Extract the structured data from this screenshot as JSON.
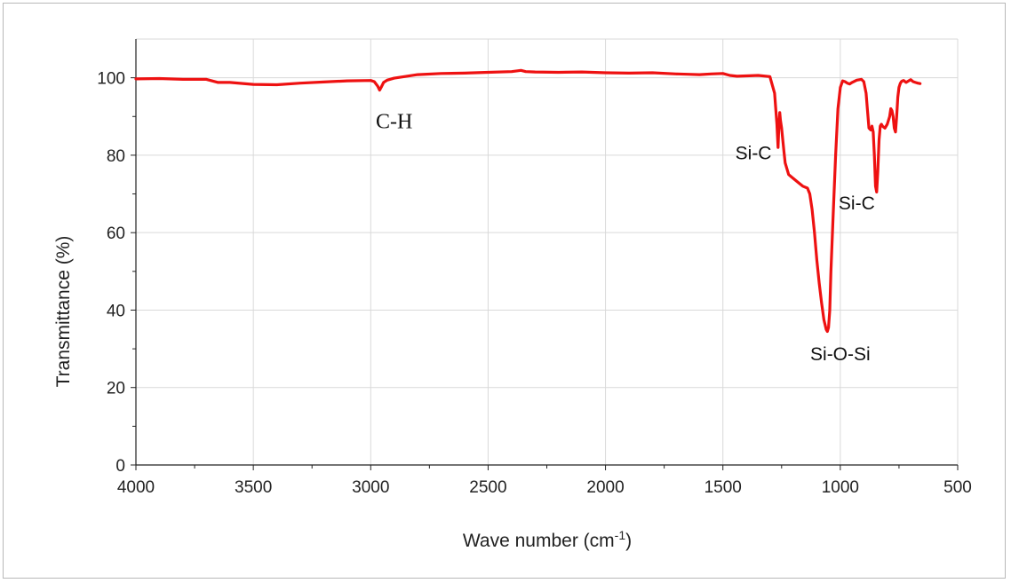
{
  "chart_data": {
    "type": "line",
    "xlabel": "Wave number (cm",
    "xlabel_superscript": "-1",
    "xlabel_suffix": ")",
    "ylabel": "Transmittance (%)",
    "xlim": [
      4000,
      500
    ],
    "ylim": [
      0,
      110
    ],
    "x_reversed": true,
    "grid": true,
    "legend": "none",
    "x_ticks": [
      4000,
      3500,
      3000,
      2500,
      2000,
      1500,
      1000,
      500
    ],
    "y_ticks": [
      0,
      20,
      40,
      60,
      80,
      100
    ],
    "line_color": "#ee1111",
    "grid_color": "#d9d9d9",
    "series": [
      {
        "x": [
          4000,
          3900,
          3800,
          3700,
          3650,
          3600,
          3500,
          3400,
          3300,
          3200,
          3100,
          3000,
          2985,
          2970,
          2962,
          2955,
          2945,
          2930,
          2900,
          2800,
          2700,
          2600,
          2500,
          2400,
          2360,
          2340,
          2300,
          2200,
          2100,
          2000,
          1900,
          1800,
          1700,
          1650,
          1600,
          1550,
          1500,
          1470,
          1440,
          1400,
          1350,
          1300,
          1280,
          1270,
          1265,
          1262,
          1258,
          1255,
          1250,
          1245,
          1240,
          1235,
          1220,
          1200,
          1180,
          1160,
          1140,
          1130,
          1120,
          1110,
          1100,
          1090,
          1080,
          1070,
          1060,
          1055,
          1050,
          1045,
          1040,
          1030,
          1020,
          1010,
          1000,
          990,
          980,
          970,
          960,
          950,
          930,
          910,
          900,
          890,
          885,
          878,
          870,
          865,
          860,
          855,
          850,
          845,
          840,
          835,
          830,
          825,
          820,
          810,
          800,
          790,
          785,
          780,
          775,
          770,
          765,
          760,
          755,
          750,
          745,
          740,
          735,
          730,
          720,
          700,
          690,
          680,
          670,
          660
        ],
        "y": [
          99.7,
          99.8,
          99.6,
          99.6,
          98.8,
          98.8,
          98.3,
          98.2,
          98.6,
          98.9,
          99.2,
          99.3,
          99.0,
          97.8,
          96.8,
          97.6,
          98.8,
          99.4,
          99.9,
          100.8,
          101.1,
          101.2,
          101.4,
          101.6,
          101.9,
          101.6,
          101.5,
          101.4,
          101.5,
          101.3,
          101.2,
          101.3,
          101.0,
          100.9,
          100.8,
          101.0,
          101.1,
          100.6,
          100.4,
          100.5,
          100.6,
          100.3,
          96.0,
          88.0,
          82.0,
          87.0,
          91.0,
          89.0,
          87.0,
          84.0,
          81.0,
          78.0,
          75.0,
          74.0,
          73.0,
          72.0,
          71.5,
          70.0,
          66.0,
          60.0,
          53.0,
          47.0,
          42.0,
          37.5,
          35.0,
          34.5,
          35.5,
          40.0,
          50.0,
          65.0,
          80.0,
          92.0,
          97.5,
          99.2,
          99.0,
          98.6,
          98.4,
          98.8,
          99.4,
          99.6,
          99.0,
          96.0,
          92.0,
          87.0,
          86.5,
          87.5,
          86.0,
          80.0,
          72.0,
          70.5,
          76.0,
          84.0,
          87.5,
          88.0,
          87.5,
          87.0,
          88.0,
          90.0,
          92.0,
          91.5,
          90.0,
          87.0,
          86.0,
          90.0,
          95.0,
          97.5,
          98.5,
          99.0,
          99.2,
          99.3,
          98.8,
          99.5,
          99.0,
          98.8,
          98.6,
          98.5
        ]
      }
    ],
    "annotations": [
      {
        "text": "C-H",
        "x": 2900,
        "y": 87
      },
      {
        "text": "Si-C",
        "x": 1370,
        "y": 79
      },
      {
        "text": "Si-C",
        "x": 930,
        "y": 66
      },
      {
        "text": "Si-O-Si",
        "x": 1000,
        "y": 27
      }
    ]
  }
}
